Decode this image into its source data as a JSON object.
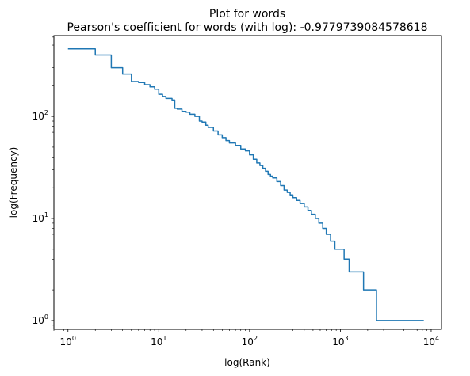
{
  "chart_data": {
    "type": "line",
    "title": "Plot for words",
    "subtitle": "Pearson's coefficient for words (with log): -0.9779739084578618",
    "xlabel": "log(Rank)",
    "ylabel": "log(Frequency)",
    "x_scale": "log",
    "y_scale": "log",
    "xlim": [
      0.7,
      13000
    ],
    "ylim": [
      0.82,
      620
    ],
    "grid": false,
    "line_color": "#1f77b4",
    "x_ticks": [
      {
        "value": 1,
        "base": "10",
        "exp": "0"
      },
      {
        "value": 10,
        "base": "10",
        "exp": "1"
      },
      {
        "value": 100,
        "base": "10",
        "exp": "2"
      },
      {
        "value": 1000,
        "base": "10",
        "exp": "3"
      },
      {
        "value": 10000,
        "base": "10",
        "exp": "4"
      }
    ],
    "y_ticks": [
      {
        "value": 1,
        "base": "10",
        "exp": "0"
      },
      {
        "value": 10,
        "base": "10",
        "exp": "1"
      },
      {
        "value": 100,
        "base": "10",
        "exp": "2"
      }
    ],
    "series": [
      {
        "step": true,
        "x": [
          1,
          2,
          3,
          4,
          5,
          6,
          7,
          8,
          9,
          10,
          11,
          12,
          14,
          15,
          16,
          18,
          20,
          22,
          25,
          28,
          30,
          33,
          35,
          40,
          45,
          50,
          55,
          60,
          70,
          80,
          90,
          100,
          110,
          120,
          130,
          140,
          150,
          160,
          170,
          180,
          200,
          220,
          240,
          260,
          280,
          300,
          330,
          360,
          400,
          440,
          480,
          530,
          580,
          640,
          700,
          780,
          870,
          970,
          1100,
          1250,
          1450,
          1800,
          2500,
          3700,
          8300
        ],
        "y": [
          460,
          400,
          300,
          260,
          220,
          215,
          205,
          195,
          185,
          165,
          157,
          150,
          145,
          120,
          118,
          112,
          110,
          105,
          100,
          90,
          88,
          82,
          78,
          72,
          66,
          62,
          58,
          55,
          52,
          48,
          46,
          42,
          38,
          35,
          33,
          31,
          29,
          27,
          26,
          25,
          23,
          21,
          19,
          18,
          17,
          16,
          15,
          14,
          13,
          12,
          11,
          10,
          9,
          8,
          7,
          6,
          5,
          5,
          4,
          3,
          3,
          2,
          1,
          1,
          1
        ]
      }
    ]
  }
}
